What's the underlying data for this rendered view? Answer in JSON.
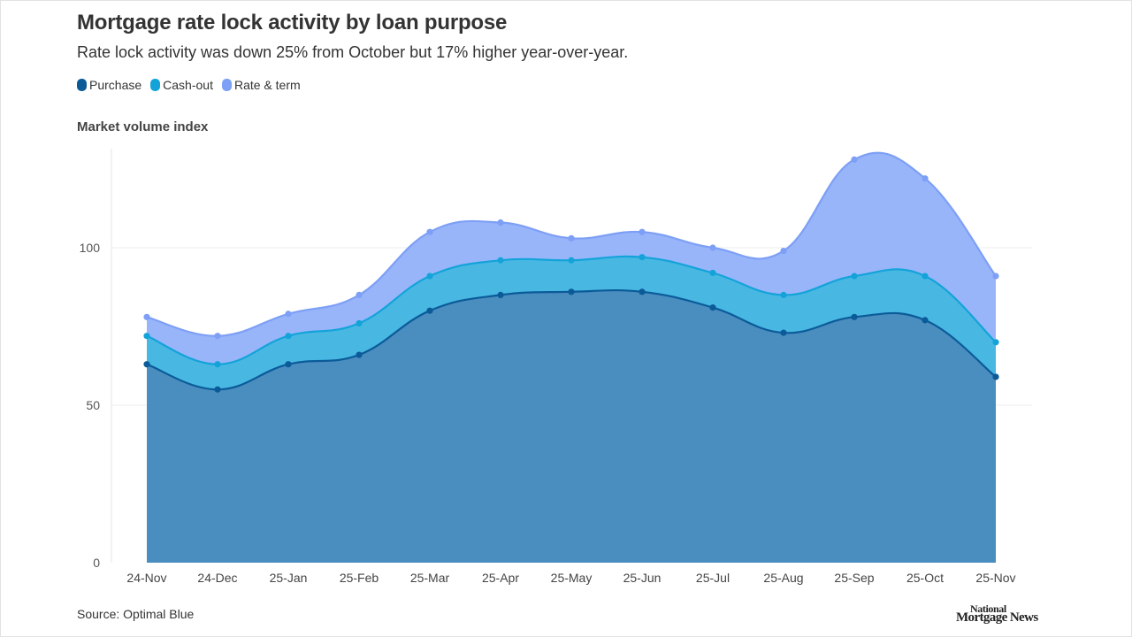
{
  "header": {
    "title": "Mortgage rate lock activity by loan purpose",
    "subtitle": "Rate lock activity was down 25% from October but 17% higher year-over-year."
  },
  "legend": {
    "items": [
      {
        "label": "Purchase",
        "color": "#0b5b99"
      },
      {
        "label": "Cash-out",
        "color": "#14a3d9"
      },
      {
        "label": "Rate & term",
        "color": "#7d9ff5"
      }
    ]
  },
  "footer": {
    "source": "Source: Optimal Blue",
    "logo_line1": "National",
    "logo_line2": "Mortgage News"
  },
  "chart_data": {
    "type": "area",
    "stacked": true,
    "title": "Mortgage rate lock activity by loan purpose",
    "subtitle": "Rate lock activity was down 25% from October but 17% higher year-over-year.",
    "ylabel": "Market volume index",
    "xlabel": "",
    "categories": [
      "24-Nov",
      "24-Dec",
      "25-Jan",
      "25-Feb",
      "25-Mar",
      "25-Apr",
      "25-May",
      "25-Jun",
      "25-Jul",
      "25-Aug",
      "25-Sep",
      "25-Oct",
      "25-Nov"
    ],
    "ylim": [
      0,
      130
    ],
    "yticks": [
      0,
      50,
      100
    ],
    "grid": true,
    "legend_position": "top-left",
    "series": [
      {
        "name": "Purchase",
        "color": "#0b5b99",
        "fill": "#4a8dbf",
        "values": [
          63,
          55,
          63,
          66,
          80,
          85,
          86,
          86,
          81,
          73,
          78,
          77,
          59
        ]
      },
      {
        "name": "Cash-out",
        "color": "#14a3d9",
        "fill": "#48b8e3",
        "values": [
          9,
          8,
          9,
          10,
          11,
          11,
          10,
          11,
          11,
          12,
          13,
          14,
          11
        ]
      },
      {
        "name": "Rate & term",
        "color": "#7d9ff5",
        "fill": "#98b5fa",
        "values": [
          6,
          9,
          7,
          9,
          14,
          12,
          7,
          8,
          8,
          14,
          37,
          31,
          21
        ]
      }
    ]
  }
}
